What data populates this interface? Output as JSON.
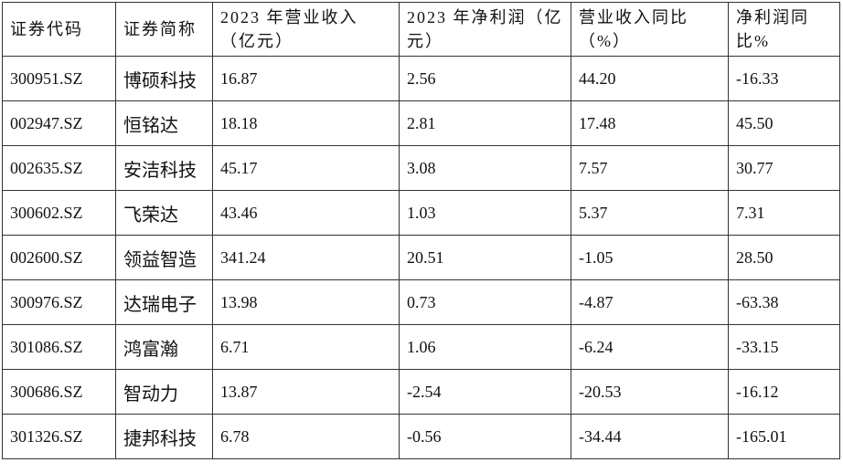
{
  "table": {
    "header": [
      "证券代码",
      "证券简称",
      "2023 年营业收入（亿元）",
      "2023 年净利润（亿元）",
      "营业收入同比（%）",
      "净利润同比%"
    ],
    "rows": [
      [
        "300951.SZ",
        "博硕科技",
        "16.87",
        "2.56",
        "44.20",
        "-16.33"
      ],
      [
        "002947.SZ",
        "恒铭达",
        "18.18",
        "2.81",
        "17.48",
        "45.50"
      ],
      [
        "002635.SZ",
        "安洁科技",
        "45.17",
        "3.08",
        "7.57",
        "30.77"
      ],
      [
        "300602.SZ",
        "飞荣达",
        "43.46",
        "1.03",
        "5.37",
        "7.31"
      ],
      [
        "002600.SZ",
        "领益智造",
        "341.24",
        "20.51",
        "-1.05",
        "28.50"
      ],
      [
        "300976.SZ",
        "达瑞电子",
        "13.98",
        "0.73",
        "-4.87",
        "-63.38"
      ],
      [
        "301086.SZ",
        "鸿富瀚",
        "6.71",
        "1.06",
        "-6.24",
        "-33.15"
      ],
      [
        "300686.SZ",
        "智动力",
        "13.87",
        "-2.54",
        "-20.53",
        "-16.12"
      ],
      [
        "301326.SZ",
        "捷邦科技",
        "6.78",
        "-0.56",
        "-34.44",
        "-165.01"
      ]
    ]
  }
}
